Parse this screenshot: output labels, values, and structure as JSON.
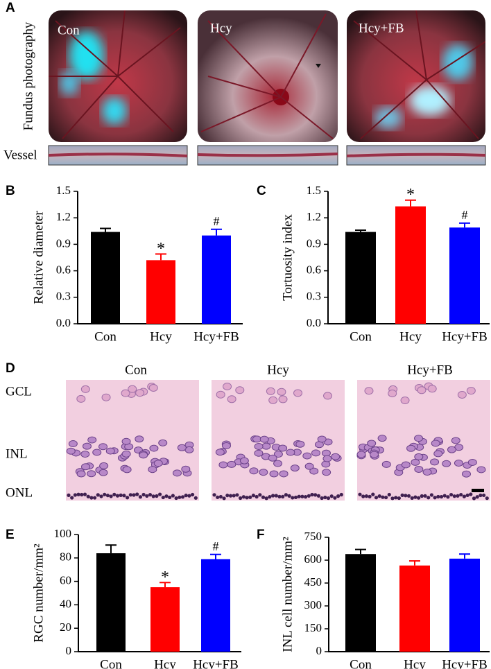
{
  "figure": {
    "panel_a": {
      "letter": "A",
      "row_label": "Fundus photography",
      "vessel_label": "Vessel",
      "image_labels": [
        "Con",
        "Hcy",
        "Hcy+FB"
      ]
    },
    "panel_d": {
      "letter": "D",
      "column_labels": [
        "Con",
        "Hcy",
        "Hcy+FB"
      ],
      "layer_labels": [
        "GCL",
        "INL",
        "ONL"
      ]
    }
  },
  "chart_data": [
    {
      "type": "bar",
      "panel_label": "B",
      "ylabel": "Relative diameter",
      "categories": [
        "Con",
        "Hcy",
        "Hcy+FB"
      ],
      "values": [
        1.04,
        0.72,
        1.0
      ],
      "errors": [
        0.04,
        0.07,
        0.07
      ],
      "colors": [
        "#000000",
        "#ff0000",
        "#0000ff"
      ],
      "ylim": [
        0,
        1.5
      ],
      "yticks": [
        {
          "value": 0,
          "label": "0.0"
        },
        0.3,
        0.6,
        0.9,
        1.2,
        1.5
      ],
      "annotations": [
        {
          "category": "Hcy",
          "text": "*"
        },
        {
          "category": "Hcy+FB",
          "text": "#"
        }
      ]
    },
    {
      "type": "bar",
      "panel_label": "C",
      "ylabel": "Tortuosity index",
      "categories": [
        "Con",
        "Hcy",
        "Hcy+FB"
      ],
      "values": [
        1.04,
        1.33,
        1.09
      ],
      "errors": [
        0.02,
        0.07,
        0.05
      ],
      "colors": [
        "#000000",
        "#ff0000",
        "#0000ff"
      ],
      "ylim": [
        0,
        1.5
      ],
      "yticks": [
        {
          "value": 0,
          "label": "0.0"
        },
        0.3,
        0.6,
        0.9,
        1.2,
        1.5
      ],
      "annotations": [
        {
          "category": "Hcy",
          "text": "*"
        },
        {
          "category": "Hcy+FB",
          "text": "#"
        }
      ]
    },
    {
      "type": "bar",
      "panel_label": "E",
      "ylabel": "RGC number/mm²",
      "categories": [
        "Con",
        "Hcy",
        "Hcy+FB"
      ],
      "values": [
        84,
        55,
        79
      ],
      "errors": [
        7,
        4,
        4
      ],
      "colors": [
        "#000000",
        "#ff0000",
        "#0000ff"
      ],
      "ylim": [
        0,
        100
      ],
      "yticks": [
        0,
        20,
        40,
        60,
        80,
        100
      ],
      "annotations": [
        {
          "category": "Hcy",
          "text": "*"
        },
        {
          "category": "Hcy+FB",
          "text": "#"
        }
      ]
    },
    {
      "type": "bar",
      "panel_label": "F",
      "ylabel": "INL cell number/mm²",
      "categories": [
        "Con",
        "Hcy",
        "Hcy+FB"
      ],
      "values": [
        640,
        565,
        610
      ],
      "errors": [
        30,
        30,
        30
      ],
      "colors": [
        "#000000",
        "#ff0000",
        "#0000ff"
      ],
      "ylim": [
        0,
        750
      ],
      "yticks": [
        0,
        150,
        300,
        450,
        600,
        750
      ]
    }
  ]
}
